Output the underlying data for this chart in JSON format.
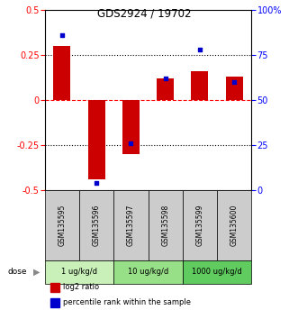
{
  "title": "GDS2924 / 19702",
  "samples": [
    "GSM135595",
    "GSM135596",
    "GSM135597",
    "GSM135598",
    "GSM135599",
    "GSM135600"
  ],
  "log2_ratio": [
    0.3,
    -0.44,
    -0.3,
    0.12,
    0.16,
    0.13
  ],
  "percentile_rank": [
    86,
    4,
    26,
    62,
    78,
    60
  ],
  "dose_groups": [
    {
      "label": "1 ug/kg/d",
      "samples": [
        0,
        1
      ],
      "color": "#c8f0b8"
    },
    {
      "label": "10 ug/kg/d",
      "samples": [
        2,
        3
      ],
      "color": "#98e088"
    },
    {
      "label": "1000 ug/kg/d",
      "samples": [
        4,
        5
      ],
      "color": "#60cc60"
    }
  ],
  "bar_color": "#cc0000",
  "dot_color": "#0000cc",
  "ylim_left": [
    -0.5,
    0.5
  ],
  "ylim_right": [
    0,
    100
  ],
  "yticks_left": [
    -0.5,
    -0.25,
    0,
    0.25,
    0.5
  ],
  "yticks_right": [
    0,
    25,
    50,
    75,
    100
  ],
  "background_color": "#ffffff",
  "sample_area_color": "#cccccc",
  "legend_items": [
    {
      "color": "#cc0000",
      "label": "log2 ratio"
    },
    {
      "color": "#0000cc",
      "label": "percentile rank within the sample"
    }
  ],
  "bar_width": 0.5
}
